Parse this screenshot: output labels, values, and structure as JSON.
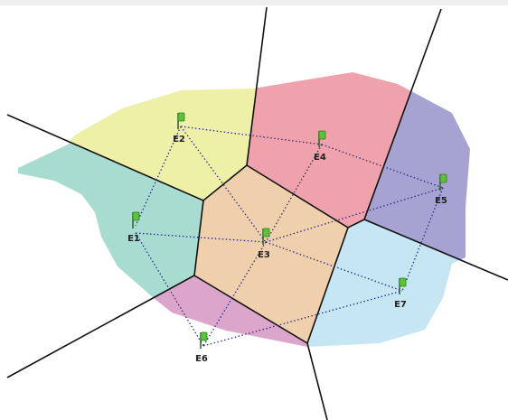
{
  "nodes": [
    {
      "label": "E1"
    },
    {
      "label": "E2"
    },
    {
      "label": "E3"
    },
    {
      "label": "E4"
    },
    {
      "label": "E5"
    },
    {
      "label": "E6"
    },
    {
      "label": "E7"
    }
  ]
}
